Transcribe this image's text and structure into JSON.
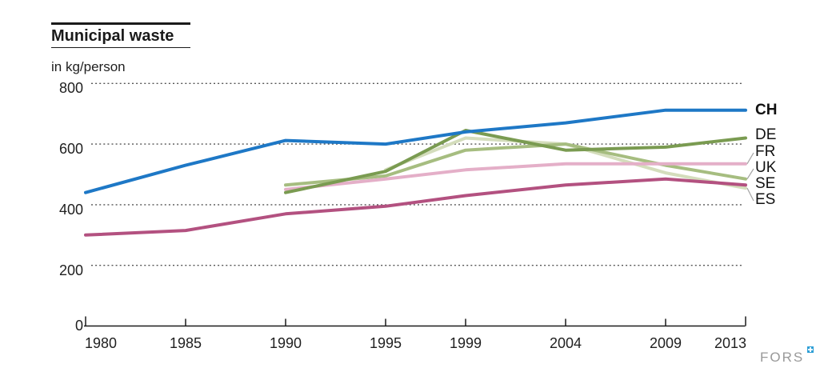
{
  "title": "Municipal waste",
  "subtitle": "in kg/person",
  "branding": {
    "logo_text": "FORS",
    "logo_icon": "swiss-cross-icon",
    "logo_text_color": "#999999",
    "logo_icon_color": "#2f9fd6"
  },
  "colors": {
    "grid": "#555555",
    "axis": "#1a1a1a",
    "leader": "#a3a3a3",
    "text": "#1f1f1f"
  },
  "chart_data": {
    "type": "line",
    "title": "Municipal waste",
    "ylabel": "in kg/person",
    "xlabel": "",
    "xlim": [
      1978,
      2013
    ],
    "ylim": [
      0,
      800
    ],
    "x_ticks": [
      1980,
      1985,
      1990,
      1995,
      1999,
      2004,
      2009,
      2013
    ],
    "y_ticks": [
      0,
      200,
      400,
      600,
      800
    ],
    "grid": "horizontal-dotted",
    "legend_position": "right-of-line-ends",
    "series": [
      {
        "name": "CH",
        "color": "#1e78c6",
        "bold_label": true,
        "x": [
          1980,
          1985,
          1990,
          1995,
          1999,
          2004,
          2009,
          2013
        ],
        "values": [
          440,
          530,
          612,
          600,
          640,
          670,
          712,
          712
        ]
      },
      {
        "name": "DE",
        "color": "#7a9b51",
        "bold_label": false,
        "x": [
          1990,
          1995,
          1999,
          2004,
          2009,
          2013
        ],
        "values": [
          440,
          510,
          645,
          580,
          590,
          620
        ]
      },
      {
        "name": "FR",
        "color": "#e4afc8",
        "bold_label": false,
        "x": [
          1990,
          1995,
          1999,
          2004,
          2009,
          2013
        ],
        "values": [
          450,
          485,
          515,
          535,
          535,
          535
        ]
      },
      {
        "name": "UK",
        "color": "#a6bd80",
        "bold_label": false,
        "x": [
          1990,
          1995,
          1999,
          2004,
          2009,
          2013
        ],
        "values": [
          465,
          495,
          580,
          600,
          530,
          485
        ]
      },
      {
        "name": "SE",
        "color": "#b35180",
        "bold_label": false,
        "x": [
          1980,
          1985,
          1990,
          1995,
          1999,
          2004,
          2009,
          2013
        ],
        "values": [
          300,
          315,
          370,
          395,
          430,
          465,
          485,
          465
        ]
      },
      {
        "name": "ES",
        "color": "#d4ddbc",
        "bold_label": false,
        "x": [
          1995,
          1999,
          2004,
          2009,
          2013
        ],
        "values": [
          515,
          620,
          600,
          505,
          455
        ]
      }
    ]
  }
}
